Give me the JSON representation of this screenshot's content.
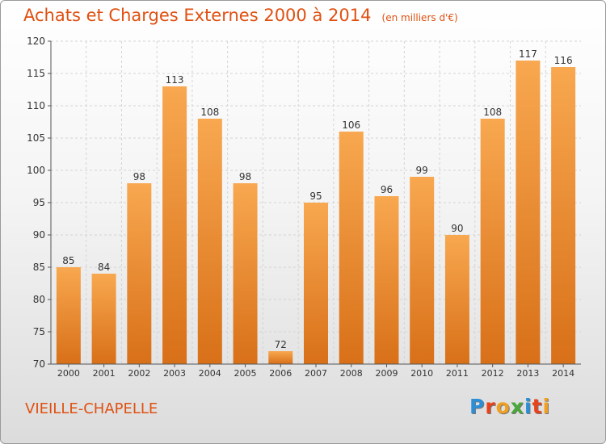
{
  "header": {
    "title": "Achats et Charges Externes 2000 à 2014",
    "unit": "(en milliers d'€)"
  },
  "footer": {
    "commune": "VIEILLE-CHAPELLE",
    "logo_text": "Proxiti",
    "logo_colors": [
      "#2a8fd8",
      "#e8421a",
      "#f0a020",
      "#4aa83a",
      "#2a8fd8",
      "#e8421a",
      "#f0a020"
    ]
  },
  "chart_data": {
    "type": "bar",
    "title": "Achats et Charges Externes 2000 à 2014",
    "subtitle": "(en milliers d'€)",
    "categories": [
      "2000",
      "2001",
      "2002",
      "2003",
      "2004",
      "2005",
      "2006",
      "2007",
      "2008",
      "2009",
      "2010",
      "2011",
      "2012",
      "2013",
      "2014"
    ],
    "values": [
      85,
      84,
      98,
      113,
      108,
      98,
      72,
      95,
      106,
      96,
      99,
      90,
      108,
      117,
      116
    ],
    "ylim": [
      70,
      120
    ],
    "yticks": [
      70,
      75,
      80,
      85,
      90,
      95,
      100,
      105,
      110,
      115,
      120
    ],
    "grid": true,
    "bar_color_top": "#f8a850",
    "bar_color_bottom": "#d87018"
  }
}
